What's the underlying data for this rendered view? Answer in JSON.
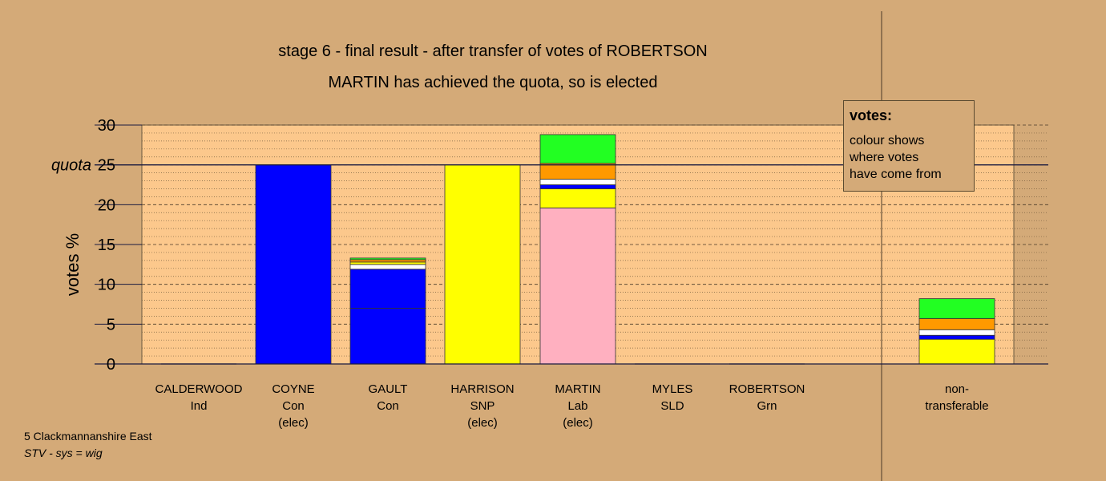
{
  "title_line1": "stage 6 - final result - after transfer of votes of ROBERTSON",
  "title_line2": "MARTIN has achieved the quota, so is elected",
  "footer": {
    "constituency": "5 Clackmannanshire East",
    "system": "STV - sys = wig"
  },
  "legend": {
    "title": "votes:",
    "lines": [
      "colour shows",
      "where votes",
      "have come from"
    ]
  },
  "colors": {
    "background": "#d4aa78",
    "plot_area": "#fcc88c",
    "Con": "#0000ff",
    "SNP": "#ffff00",
    "Lab": "#ffb0c0",
    "SLD": "#ff9900",
    "Grn": "#22ff22",
    "Ind": "#ffffff"
  },
  "chart_data": {
    "type": "bar",
    "stacked": true,
    "ylabel": "votes %",
    "ylim": [
      0,
      30
    ],
    "yticks": [
      0,
      5,
      10,
      15,
      20,
      25,
      30
    ],
    "quota": 25,
    "quota_label": "quota",
    "categories": [
      {
        "name": "CALDERWOOD",
        "party": "Ind",
        "elected": ""
      },
      {
        "name": "COYNE",
        "party": "Con",
        "elected": "(elec)"
      },
      {
        "name": "GAULT",
        "party": "Con",
        "elected": ""
      },
      {
        "name": "HARRISON",
        "party": "SNP",
        "elected": "(elec)"
      },
      {
        "name": "MARTIN",
        "party": "Lab",
        "elected": "(elec)"
      },
      {
        "name": "MYLES",
        "party": "SLD",
        "elected": ""
      },
      {
        "name": "ROBERTSON",
        "party": "Grn",
        "elected": ""
      },
      {
        "name": "non-",
        "party": "transferable",
        "elected": ""
      }
    ],
    "segments": [
      [],
      [
        {
          "party": "Con",
          "value": 25.0
        }
      ],
      [
        {
          "party": "Con",
          "value": 7.0
        },
        {
          "party": "Con",
          "value": 4.9
        },
        {
          "party": "Ind",
          "value": 0.6
        },
        {
          "party": "SNP",
          "value": 0.3
        },
        {
          "party": "SLD",
          "value": 0.3
        },
        {
          "party": "Grn",
          "value": 0.2
        }
      ],
      [
        {
          "party": "SNP",
          "value": 25.0
        }
      ],
      [
        {
          "party": "Lab",
          "value": 19.6
        },
        {
          "party": "SNP",
          "value": 2.4
        },
        {
          "party": "Con",
          "value": 0.5
        },
        {
          "party": "Ind",
          "value": 0.7
        },
        {
          "party": "SLD",
          "value": 2.0
        },
        {
          "party": "Grn",
          "value": 3.6
        }
      ],
      [],
      [],
      [
        {
          "party": "SNP",
          "value": 3.1
        },
        {
          "party": "Con",
          "value": 0.5
        },
        {
          "party": "Ind",
          "value": 0.7
        },
        {
          "party": "SLD",
          "value": 1.4
        },
        {
          "party": "Grn",
          "value": 2.5
        }
      ]
    ]
  }
}
